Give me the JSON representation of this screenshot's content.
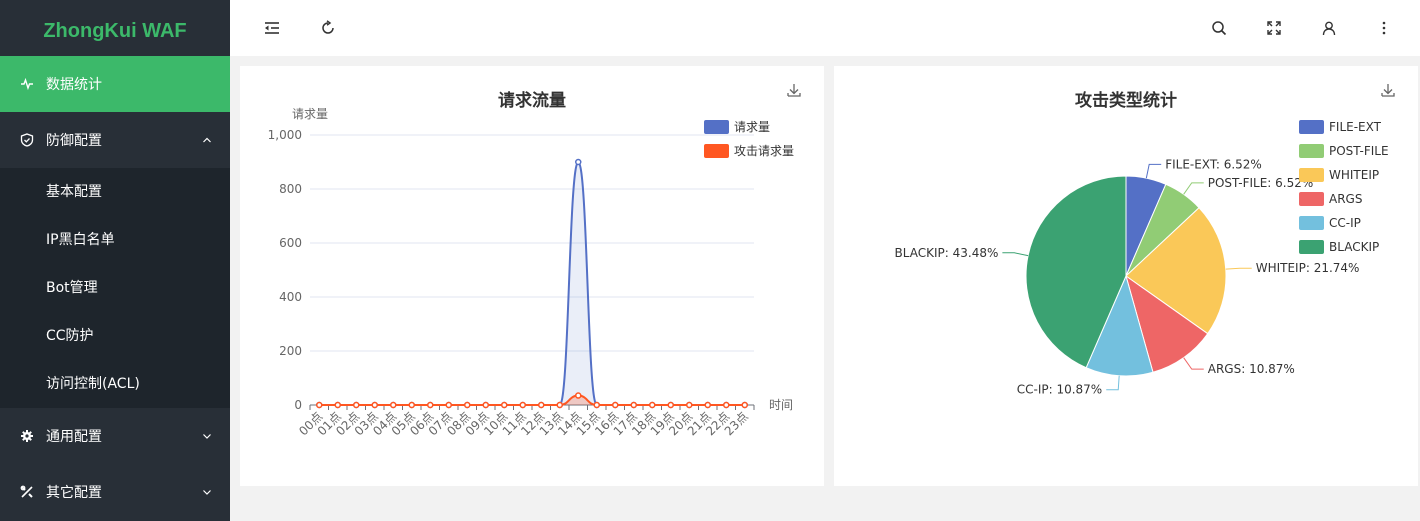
{
  "brand": "ZhongKui WAF",
  "menu": {
    "stats": "数据统计",
    "defense": "防御配置",
    "defense_items": [
      "基本配置",
      "IP黑白名单",
      "Bot管理",
      "CC防护",
      "访问控制(ACL)"
    ],
    "general": "通用配置",
    "other": "其它配置"
  },
  "header": {
    "icons": [
      "menu-fold-icon",
      "refresh-icon",
      "search-icon",
      "fullscreen-icon",
      "user-icon",
      "more-icon"
    ]
  },
  "colors": {
    "accent": "#3cb96a",
    "sidebar_bg": "#282f37",
    "submenu_bg": "#1e252c",
    "series_request": "#5470c6",
    "series_attack": "#ff5722"
  },
  "chart_data": [
    {
      "type": "line",
      "title": "请求流量",
      "ylabel": "请求量",
      "xlabel": "时间",
      "ylim": [
        0,
        1000
      ],
      "yticks": [
        0,
        200,
        400,
        600,
        800,
        1000
      ],
      "ytick_labels": [
        "0",
        "200",
        "400",
        "600",
        "800",
        "1,000"
      ],
      "categories": [
        "00点",
        "01点",
        "02点",
        "03点",
        "04点",
        "05点",
        "06点",
        "07点",
        "08点",
        "09点",
        "10点",
        "11点",
        "12点",
        "13点",
        "14点",
        "15点",
        "16点",
        "17点",
        "18点",
        "19点",
        "20点",
        "21点",
        "22点",
        "23点"
      ],
      "series": [
        {
          "name": "请求量",
          "color": "#5470c6",
          "values": [
            0,
            0,
            0,
            0,
            0,
            0,
            0,
            0,
            0,
            0,
            0,
            0,
            0,
            0,
            900,
            0,
            0,
            0,
            0,
            0,
            0,
            0,
            0,
            0
          ]
        },
        {
          "name": "攻击请求量",
          "color": "#ff5722",
          "values": [
            0,
            0,
            0,
            0,
            0,
            0,
            0,
            0,
            0,
            0,
            0,
            0,
            0,
            0,
            35,
            0,
            0,
            0,
            0,
            0,
            0,
            0,
            0,
            0
          ]
        }
      ],
      "legend_position": "top-right",
      "grid": true
    },
    {
      "type": "pie",
      "title": "攻击类型统计",
      "legend_position": "top-right",
      "slices": [
        {
          "name": "FILE-EXT",
          "value": 6.52,
          "label": "FILE-EXT: 6.52%",
          "color": "#5470c6"
        },
        {
          "name": "POST-FILE",
          "value": 6.52,
          "label": "POST-FILE: 6.52%",
          "color": "#91cc75"
        },
        {
          "name": "WHITEIP",
          "value": 21.74,
          "label": "WHITEIP: 21.74%",
          "color": "#fac858"
        },
        {
          "name": "ARGS",
          "value": 10.87,
          "label": "ARGS: 10.87%",
          "color": "#ee6666"
        },
        {
          "name": "CC-IP",
          "value": 10.87,
          "label": "CC-IP: 10.87%",
          "color": "#73c0de"
        },
        {
          "name": "BLACKIP",
          "value": 43.48,
          "label": "BLACKIP: 43.48%",
          "color": "#3ba272"
        }
      ]
    }
  ]
}
